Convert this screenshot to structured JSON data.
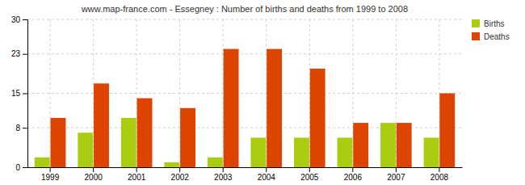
{
  "chart_data": {
    "type": "bar",
    "title": "www.map-france.com - Essegney : Number of births and deaths from 1999 to 2008",
    "categories": [
      "1999",
      "2000",
      "2001",
      "2002",
      "2003",
      "2004",
      "2005",
      "2006",
      "2007",
      "2008"
    ],
    "series": [
      {
        "name": "Births",
        "color": "#aacc11",
        "values": [
          2,
          7,
          10,
          1,
          2,
          6,
          6,
          6,
          9,
          6
        ]
      },
      {
        "name": "Deaths",
        "color": "#dd4400",
        "values": [
          10,
          17,
          14,
          12,
          24,
          24,
          20,
          9,
          9,
          15
        ]
      }
    ],
    "ylim": [
      0,
      30
    ],
    "yticks": [
      0,
      8,
      15,
      23,
      30
    ],
    "grid": true,
    "legend": "upper right"
  }
}
